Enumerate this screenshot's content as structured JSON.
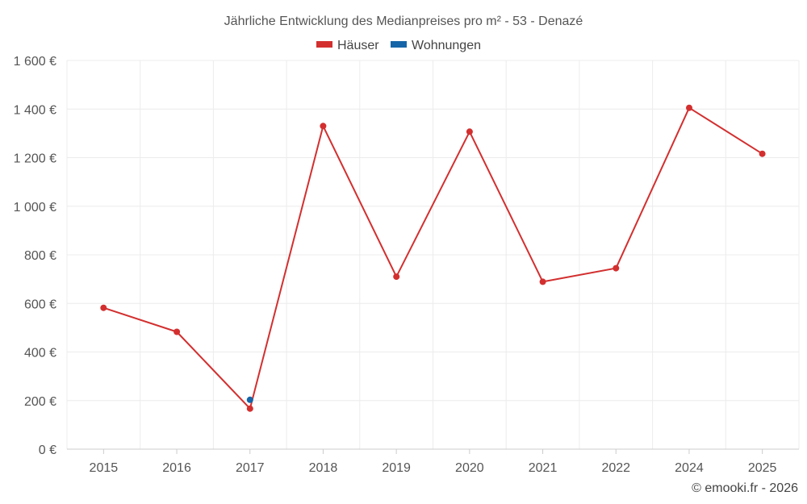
{
  "chart_data": {
    "type": "line",
    "title": "Jährliche Entwicklung des Medianpreises pro m² - 53 - Denazé",
    "categories": [
      "2015",
      "2016",
      "2017",
      "2018",
      "2019",
      "2020",
      "2021",
      "2022",
      "2024",
      "2025"
    ],
    "series": [
      {
        "name": "Häuser",
        "color": "#d32f2f",
        "values": [
          582,
          483,
          167,
          1330,
          710,
          1307,
          689,
          745,
          1405,
          1216
        ]
      },
      {
        "name": "Wohnungen",
        "color": "#1565a8",
        "values": [
          null,
          null,
          203,
          null,
          null,
          null,
          null,
          null,
          null,
          null
        ]
      }
    ],
    "ylim": [
      0,
      1600
    ],
    "yticks": [
      0,
      200,
      400,
      600,
      800,
      1000,
      1200,
      1400,
      1600
    ],
    "ytick_labels": [
      "0 €",
      "200 €",
      "400 €",
      "600 €",
      "800 €",
      "1 000 €",
      "1 200 €",
      "1 400 €",
      "1 600 €"
    ],
    "xlabel": "",
    "ylabel": "",
    "grid": true,
    "legend_position": "top-center",
    "credit": "© emooki.fr - 2026"
  }
}
